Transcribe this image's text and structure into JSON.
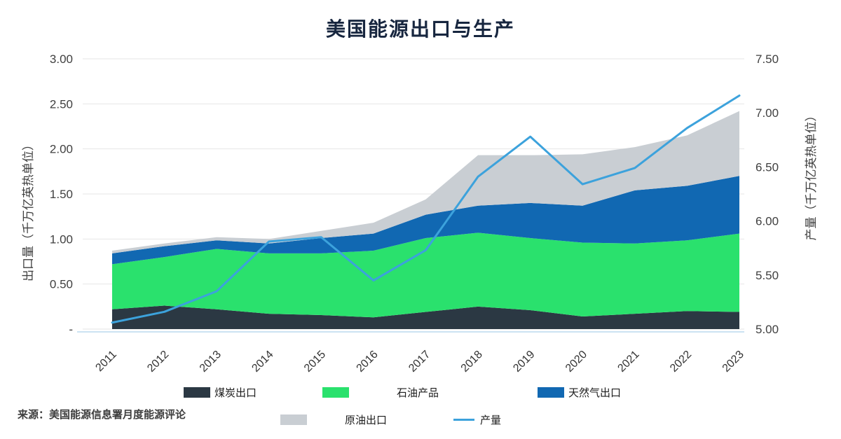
{
  "title": "美国能源出口与生产",
  "source": "来源：美国能源信息署月度能源评论",
  "axes": {
    "left": {
      "label": "出口量（千万亿英热单位）",
      "ticks": [
        "3.00",
        "2.50",
        "2.00",
        "1.50",
        "1.00",
        "0.50",
        "-"
      ]
    },
    "right": {
      "label": "产量（千万亿英热单位）",
      "ticks": [
        "7.50",
        "7.00",
        "6.50",
        "6.00",
        "5.50",
        "5.00"
      ]
    }
  },
  "legend": [
    {
      "label": "煤炭出口",
      "type": "box",
      "color": "#2b3843"
    },
    {
      "label": "石油产品",
      "type": "box",
      "color": "#2ae16d"
    },
    {
      "label": "天然气出口",
      "type": "box",
      "color": "#1168b2"
    },
    {
      "label": "原油出口",
      "type": "box",
      "color": "#c9ced3"
    },
    {
      "label": "产量",
      "type": "line",
      "color": "#3ca2dc"
    }
  ],
  "chart_data": {
    "type": "area",
    "stacked": true,
    "grid": true,
    "title": "美国能源出口与生产",
    "xlabel": "",
    "ylabel_left": "出口量（千万亿英热单位）",
    "ylabel_right": "产量（千万亿英热单位）",
    "left_axis_range": [
      0,
      3.0
    ],
    "right_axis_range": [
      5.0,
      7.5
    ],
    "categories": [
      "2011",
      "2012",
      "2013",
      "2014",
      "2015",
      "2016",
      "2017",
      "2018",
      "2019",
      "2020",
      "2021",
      "2022",
      "2023"
    ],
    "series": [
      {
        "key": "coal-exports",
        "name": "煤炭出口",
        "color": "#2b3843",
        "values": [
          0.22,
          0.26,
          0.22,
          0.17,
          0.155,
          0.13,
          0.19,
          0.25,
          0.21,
          0.14,
          0.17,
          0.2,
          0.19
        ]
      },
      {
        "key": "petroleum-products",
        "name": "石油产品",
        "color": "#2ae16d",
        "values": [
          0.5,
          0.54,
          0.67,
          0.67,
          0.685,
          0.74,
          0.82,
          0.82,
          0.8,
          0.82,
          0.78,
          0.785,
          0.87
        ]
      },
      {
        "key": "natural-gas-exports",
        "name": "天然气出口",
        "color": "#1168b2",
        "values": [
          0.12,
          0.12,
          0.095,
          0.11,
          0.17,
          0.19,
          0.26,
          0.3,
          0.39,
          0.41,
          0.59,
          0.605,
          0.64
        ]
      },
      {
        "key": "crude-oil-exports",
        "name": "原油出口",
        "color": "#c9ced3",
        "values": [
          0.03,
          0.03,
          0.035,
          0.05,
          0.08,
          0.12,
          0.17,
          0.56,
          0.53,
          0.57,
          0.48,
          0.56,
          0.72
        ]
      }
    ],
    "line_series": {
      "key": "production",
      "name": "产量",
      "color": "#3ca2dc",
      "axis": "right",
      "values": [
        5.06,
        5.16,
        5.35,
        5.81,
        5.85,
        5.45,
        5.73,
        6.41,
        6.78,
        6.34,
        6.49,
        6.86,
        7.16
      ]
    },
    "legend_position": "bottom"
  }
}
